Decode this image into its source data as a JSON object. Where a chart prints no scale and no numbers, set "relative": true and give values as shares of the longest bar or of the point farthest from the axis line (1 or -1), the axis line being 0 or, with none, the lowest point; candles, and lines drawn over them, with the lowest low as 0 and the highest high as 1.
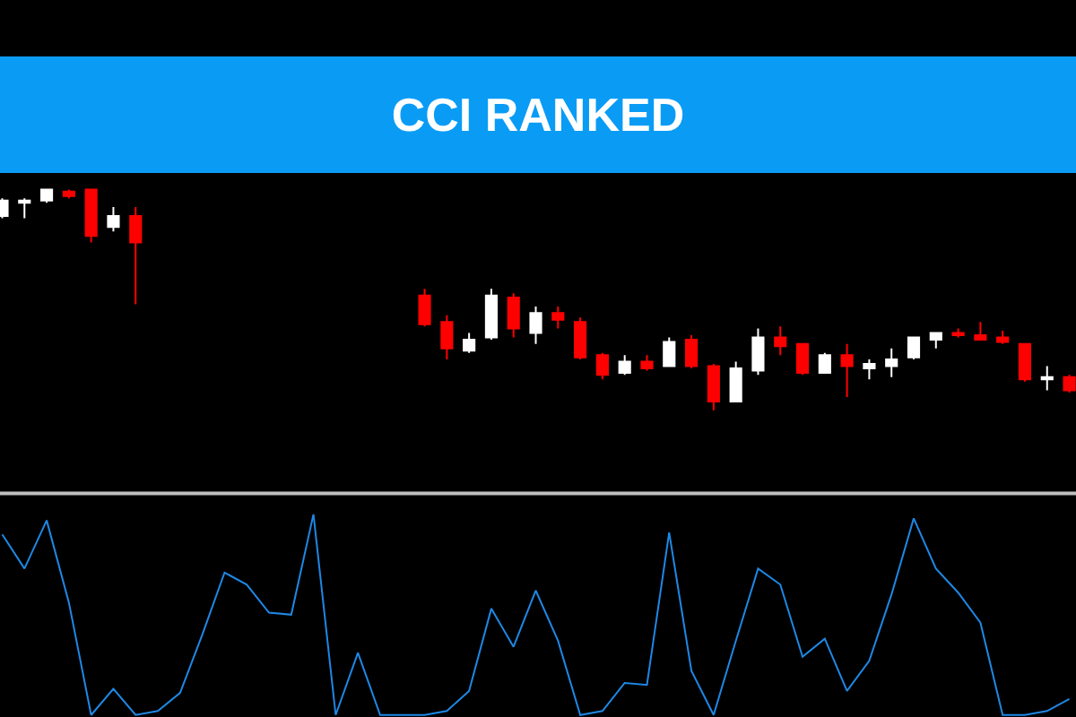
{
  "chart_data": [
    {
      "type": "candlestick",
      "title": "CCI RANKED",
      "relative": true,
      "tick_labels": false,
      "grid": false,
      "categories": [
        null,
        null,
        null,
        null,
        null,
        null,
        null,
        null,
        null,
        null,
        null,
        null,
        null,
        null,
        null,
        null,
        null,
        null,
        null,
        null,
        null,
        null,
        null,
        null,
        null,
        null,
        null,
        null,
        null,
        null,
        null,
        null,
        null,
        null,
        null,
        null,
        null,
        null,
        null,
        null,
        null,
        null,
        null,
        null,
        null,
        null,
        null,
        null,
        null
      ],
      "colors": [
        "#ffffff",
        "#ffffff",
        "#ffffff",
        "#ff0000",
        "#ff0000",
        "#ffffff",
        "#ff0000",
        null,
        null,
        null,
        null,
        null,
        null,
        null,
        null,
        null,
        null,
        null,
        null,
        "#ff0000",
        "#ff0000",
        "#ffffff",
        "#ffffff",
        "#ff0000",
        "#ffffff",
        "#ff0000",
        "#ff0000",
        "#ff0000",
        "#ffffff",
        "#ff0000",
        "#ffffff",
        "#ff0000",
        "#ff0000",
        "#ffffff",
        "#ffffff",
        "#ff0000",
        "#ff0000",
        "#ffffff",
        "#ff0000",
        "#ffffff",
        "#ffffff",
        "#ffffff",
        "#ffffff",
        "#ff0000",
        "#ff0000",
        "#ff0000",
        "#ff0000",
        "#ffffff",
        "#ff0000"
      ],
      "ohlc": [
        [
          0.88,
          0.96,
          0.87,
          0.95
        ],
        [
          0.94,
          0.96,
          0.87,
          0.95
        ],
        [
          0.95,
          1.0,
          0.94,
          1.0
        ],
        [
          0.99,
          1.0,
          0.96,
          0.97
        ],
        [
          1.0,
          1.0,
          0.76,
          0.79
        ],
        [
          0.83,
          0.92,
          0.81,
          0.88
        ],
        [
          0.88,
          0.92,
          0.48,
          0.76
        ],
        null,
        null,
        null,
        null,
        null,
        null,
        null,
        null,
        null,
        null,
        null,
        null,
        [
          0.52,
          0.55,
          0.38,
          0.39
        ],
        [
          0.4,
          0.43,
          0.23,
          0.28
        ],
        [
          0.27,
          0.35,
          0.26,
          0.32
        ],
        [
          0.33,
          0.55,
          0.32,
          0.52
        ],
        [
          0.51,
          0.53,
          0.33,
          0.37
        ],
        [
          0.35,
          0.47,
          0.3,
          0.44
        ],
        [
          0.44,
          0.47,
          0.37,
          0.41
        ],
        [
          0.4,
          0.42,
          0.23,
          0.24
        ],
        [
          0.25,
          0.26,
          0.14,
          0.16
        ],
        [
          0.17,
          0.25,
          0.16,
          0.22
        ],
        [
          0.22,
          0.25,
          0.18,
          0.19
        ],
        [
          0.2,
          0.33,
          0.2,
          0.31
        ],
        [
          0.32,
          0.34,
          0.19,
          0.2
        ],
        [
          0.2,
          0.21,
          0.0,
          0.04
        ],
        [
          0.04,
          0.22,
          0.04,
          0.19
        ],
        [
          0.18,
          0.37,
          0.16,
          0.33
        ],
        [
          0.33,
          0.38,
          0.25,
          0.29
        ],
        [
          0.3,
          0.3,
          0.16,
          0.17
        ],
        [
          0.17,
          0.26,
          0.17,
          0.25
        ],
        [
          0.25,
          0.3,
          0.06,
          0.2
        ],
        [
          0.19,
          0.23,
          0.14,
          0.21
        ],
        [
          0.2,
          0.28,
          0.15,
          0.23
        ],
        [
          0.24,
          0.33,
          0.23,
          0.33
        ],
        [
          0.32,
          0.35,
          0.28,
          0.35
        ],
        [
          0.35,
          0.37,
          0.33,
          0.34
        ],
        [
          0.34,
          0.4,
          0.32,
          0.32
        ],
        [
          0.33,
          0.36,
          0.3,
          0.31
        ],
        [
          0.3,
          0.3,
          0.13,
          0.14
        ],
        [
          0.14,
          0.2,
          0.09,
          0.15
        ],
        [
          0.15,
          0.16,
          0.08,
          0.09
        ]
      ]
    },
    {
      "type": "line",
      "relative": true,
      "tick_labels": false,
      "grid": false,
      "marker": "none",
      "line_style": "solid",
      "categories": [
        null,
        null,
        null,
        null,
        null,
        null,
        null,
        null,
        null,
        null,
        null,
        null,
        null,
        null,
        null,
        null,
        null,
        null,
        null,
        null,
        null,
        null,
        null,
        null,
        null,
        null,
        null,
        null,
        null,
        null,
        null,
        null,
        null,
        null,
        null,
        null,
        null,
        null,
        null,
        null,
        null,
        null,
        null,
        null,
        null,
        null,
        null,
        null,
        null
      ],
      "series": [
        {
          "color": "#1e88e5",
          "values": [
            0.9,
            0.73,
            0.97,
            0.56,
            0,
            0.13,
            0,
            0.02,
            0.11,
            0.4,
            0.71,
            0.65,
            0.51,
            0.5,
            1.0,
            0,
            0.31,
            0,
            0,
            0,
            0.02,
            0.12,
            0.53,
            0.34,
            0.62,
            0.37,
            0,
            0.02,
            0.16,
            0.15,
            0.91,
            0.22,
            0,
            0.37,
            0.73,
            0.65,
            0.29,
            0.38,
            0.12,
            0.27,
            0.6,
            0.98,
            0.73,
            0.61,
            0.46,
            0,
            0,
            0.02,
            0.08
          ]
        }
      ]
    }
  ]
}
